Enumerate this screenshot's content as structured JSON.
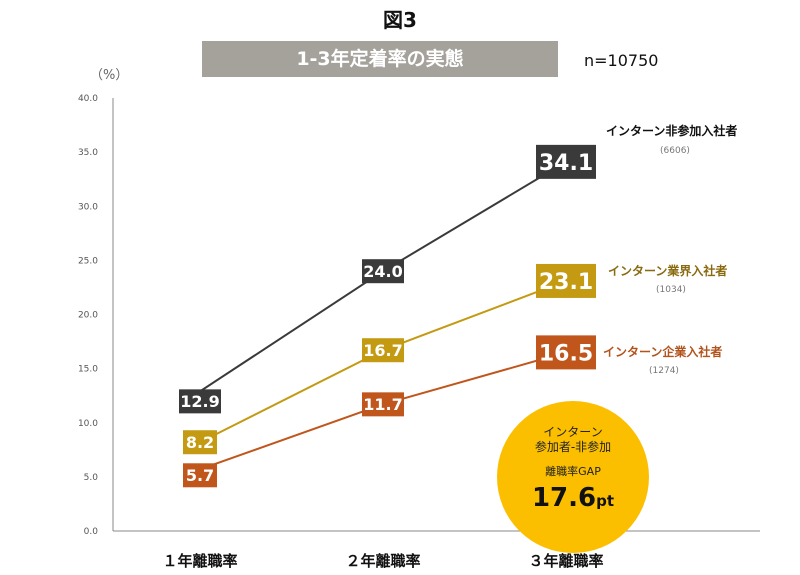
{
  "figure_label": "図3",
  "banner_title": "1-3年定着率の実態",
  "sample_size": "n=10750",
  "unit_label": "（%）",
  "gap_callout": {
    "line1": "インターン",
    "line2": "参加者-非参加",
    "line3": "離職率GAP",
    "value": "17.6",
    "unit": "pt",
    "color": "#fbbf00"
  },
  "chart_data": {
    "type": "line",
    "title": "1-3年定着率の実態",
    "xlabel": "",
    "ylabel": "（%）",
    "categories": [
      "１年離職率",
      "２年離職率",
      "３年離職率"
    ],
    "ylim": [
      0,
      40
    ],
    "yticks": [
      "0.0",
      "5.0",
      "10.0",
      "15.0",
      "20.0",
      "25.0",
      "30.0",
      "35.0",
      "40.0"
    ],
    "grid": false,
    "legend": "right (end-of-line labels)",
    "series": [
      {
        "name": "インターン非参加入社者",
        "count": "(6606)",
        "values": [
          12.9,
          24.0,
          34.1
        ],
        "labels": [
          "12.9",
          "24.0",
          "34.1"
        ],
        "color": "#3a3a3a",
        "legend_color": "#111111"
      },
      {
        "name": "インターン業界入社者",
        "count": "(1034)",
        "values": [
          8.2,
          16.7,
          23.1
        ],
        "labels": [
          "8.2",
          "16.7",
          "23.1"
        ],
        "color": "#c49a12",
        "legend_color": "#8a6a10"
      },
      {
        "name": "インターン企業入社者",
        "count": "(1274)",
        "values": [
          5.7,
          11.7,
          16.5
        ],
        "labels": [
          "5.7",
          "11.7",
          "16.5"
        ],
        "color": "#c0561c",
        "legend_color": "#b2541d"
      }
    ]
  }
}
